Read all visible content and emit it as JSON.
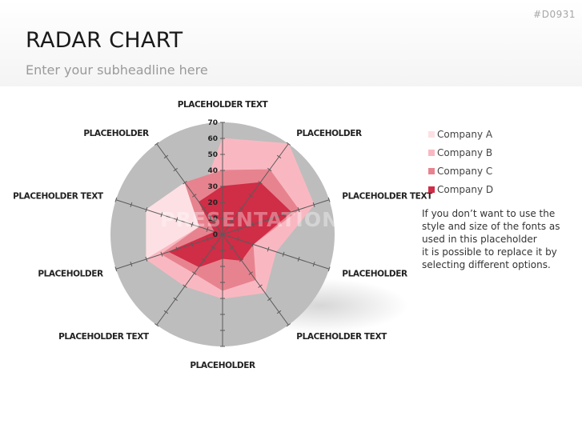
{
  "slide": {
    "id": "#D0931",
    "title": "RADAR CHART",
    "subtitle": "Enter your subheadline here",
    "watermark": "PRESENTATIONLOAD",
    "note_lines": [
      "If you don’t want to use the",
      "style and size of the fonts as",
      "used in this placeholder",
      "it is possible to replace it by",
      "selecting different options."
    ]
  },
  "colors": {
    "background_disc": "#bdbdbd",
    "axis": "#5a5a5a"
  },
  "chart_data": {
    "type": "radar",
    "categories": [
      "PLACEHOLDER TEXT",
      "PLACEHOLDER",
      "PLACEHOLDER TEXT",
      "PLACEHOLDER",
      "PLACEHOLDER TEXT",
      "PLACEHOLDER",
      "PLACEHOLDER TEXT",
      "PLACEHOLDER",
      "PLACEHOLDER TEXT",
      "PLACEHOLDER"
    ],
    "range": [
      0,
      70
    ],
    "ticks": [
      0,
      10,
      20,
      30,
      40,
      50,
      60,
      70
    ],
    "series": [
      {
        "name": "Company A",
        "color": "#fde0e4",
        "values": [
          20,
          20,
          15,
          15,
          20,
          30,
          30,
          50,
          50,
          40
        ]
      },
      {
        "name": "Company B",
        "color": "#f9b8c1",
        "values": [
          60,
          70,
          60,
          35,
          45,
          40,
          40,
          50,
          15,
          25
        ]
      },
      {
        "name": "Company C",
        "color": "#e7838f",
        "values": [
          40,
          50,
          50,
          20,
          35,
          35,
          30,
          40,
          15,
          40
        ]
      },
      {
        "name": "Company D",
        "color": "#d02d47",
        "values": [
          30,
          40,
          45,
          20,
          20,
          15,
          25,
          35,
          5,
          25
        ]
      }
    ]
  }
}
